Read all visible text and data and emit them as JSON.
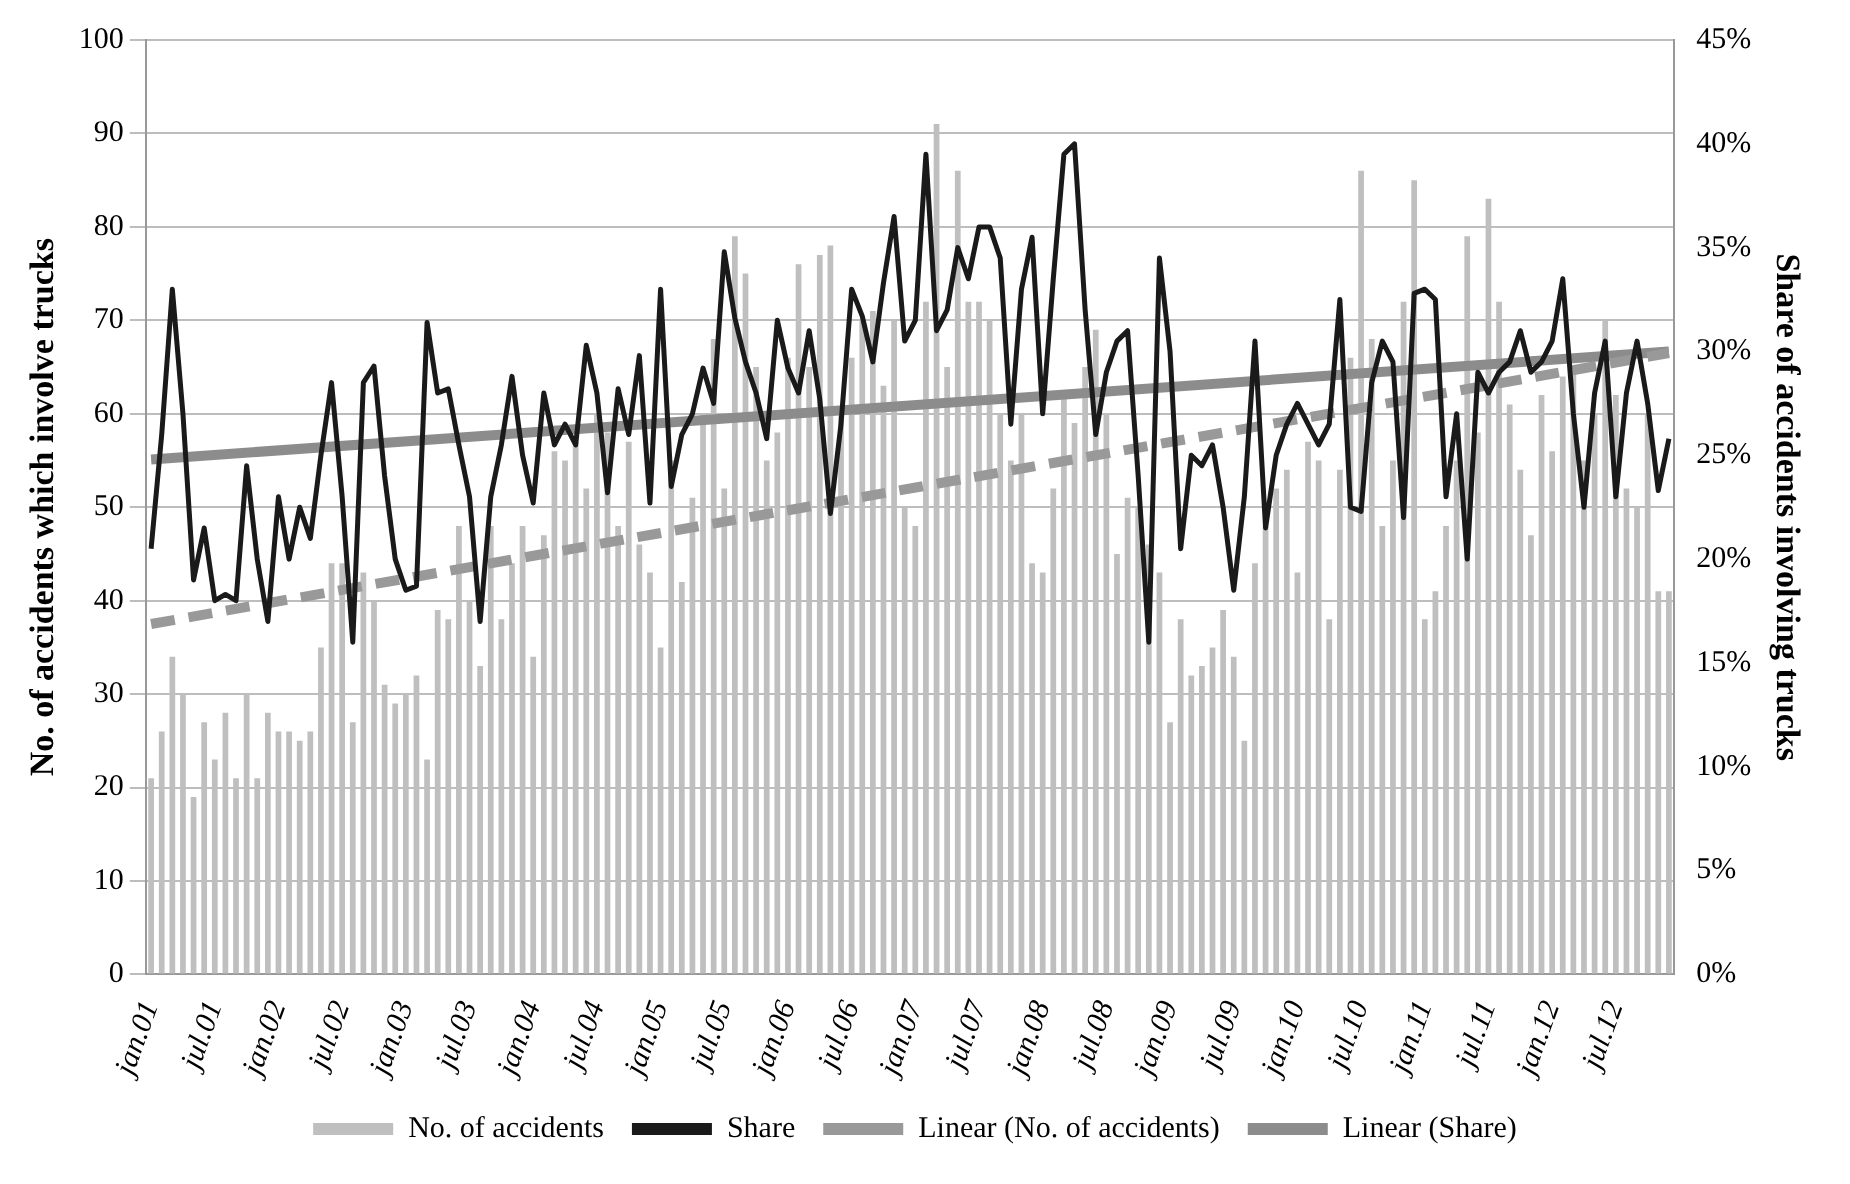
{
  "chart_data": {
    "type": "bar",
    "ylabel": "No. of accidents which involve trucks",
    "y2label": "Share of accidents involving trucks",
    "categories": [
      "jan.01",
      null,
      null,
      null,
      null,
      null,
      "jul.01",
      null,
      null,
      null,
      null,
      null,
      "jan.02",
      null,
      null,
      null,
      null,
      null,
      "jul.02",
      null,
      null,
      null,
      null,
      null,
      "jan.03",
      null,
      null,
      null,
      null,
      null,
      "jul.03",
      null,
      null,
      null,
      null,
      null,
      "jan.04",
      null,
      null,
      null,
      null,
      null,
      "jul.04",
      null,
      null,
      null,
      null,
      null,
      "jan.05",
      null,
      null,
      null,
      null,
      null,
      "jul.05",
      null,
      null,
      null,
      null,
      null,
      "jan.06",
      null,
      null,
      null,
      null,
      null,
      "jul.06",
      null,
      null,
      null,
      null,
      null,
      "jan.07",
      null,
      null,
      null,
      null,
      null,
      "jul.07",
      null,
      null,
      null,
      null,
      null,
      "jan.08",
      null,
      null,
      null,
      null,
      null,
      "jul.08",
      null,
      null,
      null,
      null,
      null,
      "jan.09",
      null,
      null,
      null,
      null,
      null,
      "jul.09",
      null,
      null,
      null,
      null,
      null,
      "jan.10",
      null,
      null,
      null,
      null,
      null,
      "jul.10",
      null,
      null,
      null,
      null,
      null,
      "jan.11",
      null,
      null,
      null,
      null,
      null,
      "jul.11",
      null,
      null,
      null,
      null,
      null,
      "jan.12",
      null,
      null,
      null,
      null,
      null,
      "jul.12",
      null,
      null,
      null,
      null,
      null
    ],
    "series": [
      {
        "name": "No. of accidents",
        "color": "#bfbfbf",
        "values": [
          21,
          26,
          34,
          30,
          19,
          27,
          23,
          28,
          21,
          30,
          21,
          28,
          26,
          26,
          25,
          26,
          35,
          44,
          44,
          27,
          43,
          40,
          31,
          29,
          30,
          32,
          23,
          39,
          38,
          48,
          40,
          33,
          48,
          38,
          44,
          48,
          34,
          47,
          56,
          55,
          57,
          52,
          60,
          58,
          48,
          57,
          46,
          43,
          35,
          55,
          42,
          51,
          60,
          68,
          52,
          79,
          75,
          65,
          55,
          58,
          66,
          76,
          65,
          77,
          78,
          60,
          66,
          70,
          71,
          63,
          70,
          50,
          48,
          72,
          91,
          65,
          86,
          72,
          72,
          70,
          60,
          55,
          60,
          44,
          43,
          52,
          62,
          59,
          65,
          69,
          60,
          45,
          51,
          50,
          46,
          43,
          27,
          38,
          32,
          33,
          35,
          39,
          34,
          25,
          44,
          48,
          52,
          54,
          43,
          57,
          55,
          38,
          54,
          66,
          86,
          68,
          48,
          55,
          72,
          85,
          38,
          41,
          48,
          55,
          79,
          58,
          83,
          72,
          61,
          54,
          47,
          62,
          56,
          64,
          65,
          55,
          60,
          70,
          62,
          52,
          50,
          60,
          41,
          41
        ]
      },
      {
        "name": "Share",
        "type": "line",
        "axis": "y2",
        "color": "#1a1a1a",
        "line_style": "solid",
        "values": [
          20.5,
          26,
          33,
          27,
          19,
          21.5,
          18,
          18.3,
          18,
          24.5,
          20,
          17,
          23,
          20,
          22.5,
          21,
          25,
          28.5,
          23,
          16,
          28.5,
          29.3,
          24,
          20,
          18.5,
          18.7,
          31.4,
          28,
          28.2,
          25.5,
          23,
          17,
          23,
          25.5,
          28.8,
          25,
          22.7,
          28,
          25.5,
          26.5,
          25.5,
          30.3,
          28,
          23.2,
          28.2,
          26,
          29.8,
          22.7,
          33,
          23.5,
          26,
          27,
          29.2,
          27.5,
          34.8,
          31.6,
          29.5,
          28,
          25.8,
          31.5,
          29.2,
          28,
          31,
          27.7,
          22.2,
          26.5,
          33,
          31.7,
          29.5,
          33.3,
          36.5,
          30.5,
          31.5,
          39.5,
          31,
          32,
          35,
          33.5,
          36,
          36,
          34.5,
          26.5,
          33,
          35.5,
          27,
          33.5,
          39.5,
          40,
          32,
          26,
          29,
          30.5,
          31,
          24,
          16,
          34.5,
          30,
          20.5,
          25,
          24.5,
          25.5,
          22.5,
          18.5,
          23,
          30.5,
          21.5,
          25,
          26.5,
          27.5,
          26.5,
          25.5,
          26.5,
          32.5,
          22.5,
          22.3,
          28.5,
          30.5,
          29.5,
          22,
          32.8,
          33,
          32.5,
          23,
          27,
          20,
          29,
          28,
          29,
          29.5,
          31,
          29,
          29.5,
          30.5,
          33.5,
          27,
          22.5,
          28,
          30.5,
          23,
          28,
          30.5,
          27.5,
          23.3,
          25.8
        ]
      },
      {
        "name": "Linear (No. of accidents)",
        "type": "line",
        "color": "#999999",
        "line_style": "dashed",
        "values": [
          37.5,
          null,
          null,
          null,
          null,
          null,
          null,
          null,
          null,
          null,
          null,
          null,
          null,
          null,
          null,
          null,
          null,
          null,
          null,
          null,
          null,
          null,
          null,
          null,
          null,
          null,
          null,
          null,
          null,
          null,
          null,
          null,
          null,
          null,
          null,
          null,
          null,
          null,
          null,
          null,
          null,
          null,
          null,
          null,
          null,
          null,
          null,
          null,
          null,
          null,
          null,
          null,
          null,
          null,
          null,
          null,
          null,
          null,
          null,
          null,
          null,
          null,
          null,
          null,
          null,
          null,
          null,
          null,
          null,
          null,
          null,
          null,
          null,
          null,
          null,
          null,
          null,
          null,
          null,
          null,
          null,
          null,
          null,
          null,
          null,
          null,
          null,
          null,
          null,
          null,
          null,
          null,
          null,
          null,
          null,
          null,
          null,
          null,
          null,
          null,
          null,
          null,
          null,
          null,
          null,
          null,
          null,
          null,
          null,
          null,
          null,
          null,
          null,
          null,
          null,
          null,
          null,
          null,
          null,
          null,
          null,
          null,
          null,
          null,
          null,
          null,
          null,
          null,
          null,
          null,
          null,
          null,
          null,
          null,
          null,
          null,
          null,
          null,
          null,
          null,
          null,
          null,
          null,
          66.5
        ]
      },
      {
        "name": "Linear (Share)",
        "type": "line",
        "axis": "y2",
        "color": "#8c8c8c",
        "line_style": "solid",
        "values": [
          24.8,
          null,
          null,
          null,
          null,
          null,
          null,
          null,
          null,
          null,
          null,
          null,
          null,
          null,
          null,
          null,
          null,
          null,
          null,
          null,
          null,
          null,
          null,
          null,
          null,
          null,
          null,
          null,
          null,
          null,
          null,
          null,
          null,
          null,
          null,
          null,
          null,
          null,
          null,
          null,
          null,
          null,
          null,
          null,
          null,
          null,
          null,
          null,
          null,
          null,
          null,
          null,
          null,
          null,
          null,
          null,
          null,
          null,
          null,
          null,
          null,
          null,
          null,
          null,
          null,
          null,
          null,
          null,
          null,
          null,
          null,
          null,
          null,
          null,
          null,
          null,
          null,
          null,
          null,
          null,
          null,
          null,
          null,
          null,
          null,
          null,
          null,
          null,
          null,
          null,
          null,
          null,
          null,
          null,
          null,
          null,
          null,
          null,
          null,
          null,
          null,
          null,
          null,
          null,
          null,
          null,
          null,
          null,
          null,
          null,
          null,
          null,
          null,
          null,
          null,
          null,
          null,
          null,
          null,
          null,
          null,
          null,
          null,
          null,
          null,
          null,
          null,
          null,
          null,
          null,
          null,
          null,
          null,
          null,
          null,
          null,
          null,
          null,
          null,
          null,
          null,
          null,
          null,
          30.0
        ]
      }
    ],
    "ylim": [
      0,
      100
    ],
    "yticks": [
      0,
      10,
      20,
      30,
      40,
      50,
      60,
      70,
      80,
      90,
      100
    ],
    "y2lim": [
      0,
      45
    ],
    "y2ticks": [
      {
        "value": 0,
        "label": "0%"
      },
      {
        "value": 5,
        "label": "5%"
      },
      {
        "value": 10,
        "label": "10%"
      },
      {
        "value": 15,
        "label": "15%"
      },
      {
        "value": 20,
        "label": "20%"
      },
      {
        "value": 25,
        "label": "25%"
      },
      {
        "value": 30,
        "label": "30%"
      },
      {
        "value": 35,
        "label": "35%"
      },
      {
        "value": 40,
        "label": "40%"
      },
      {
        "value": 45,
        "label": "45%"
      }
    ],
    "grid": "y",
    "marker": "none",
    "legend": "bottom"
  }
}
